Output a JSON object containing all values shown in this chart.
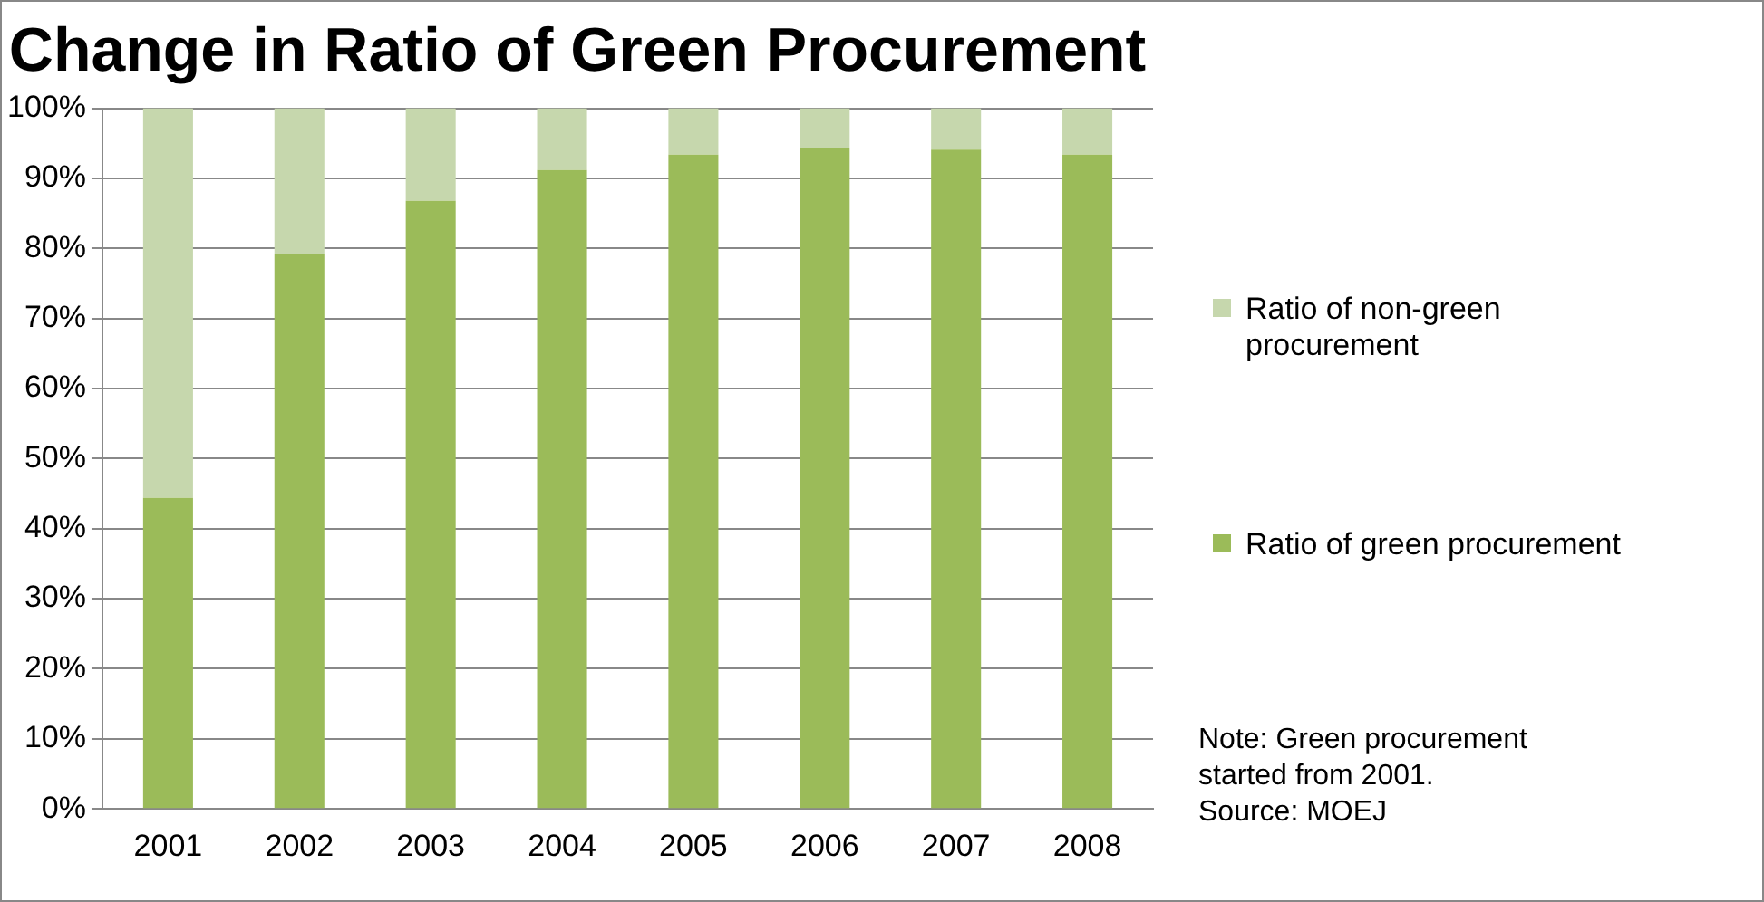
{
  "chart_data": {
    "type": "bar",
    "title": "Change in Ratio of Green Procurement",
    "categories": [
      "2001",
      "2002",
      "2003",
      "2004",
      "2005",
      "2006",
      "2007",
      "2008"
    ],
    "series": [
      {
        "name": "Ratio of green procurement",
        "color": "#9bbb59",
        "values": [
          44.4,
          79.2,
          86.8,
          91.2,
          93.4,
          94.4,
          94.1,
          93.4
        ]
      },
      {
        "name": "Ratio of non-green procurement",
        "color": "#c6d7ad",
        "values": [
          55.6,
          20.8,
          13.2,
          8.8,
          6.6,
          5.6,
          5.9,
          6.6
        ]
      }
    ],
    "stacked": true,
    "ylim": [
      0,
      100
    ],
    "yticks": [
      {
        "value": 0,
        "label": "0%"
      },
      {
        "value": 10,
        "label": "10%"
      },
      {
        "value": 20,
        "label": "20%"
      },
      {
        "value": 30,
        "label": "30%"
      },
      {
        "value": 40,
        "label": "40%"
      },
      {
        "value": 50,
        "label": "50%"
      },
      {
        "value": 60,
        "label": "60%"
      },
      {
        "value": 70,
        "label": "70%"
      },
      {
        "value": 80,
        "label": "80%"
      },
      {
        "value": 90,
        "label": "90%"
      },
      {
        "value": 100,
        "label": "100%"
      }
    ],
    "grid": "y",
    "legend": "right",
    "annotations": [
      "Note: Green procurement started from 2001.",
      "Source: MOEJ"
    ]
  }
}
